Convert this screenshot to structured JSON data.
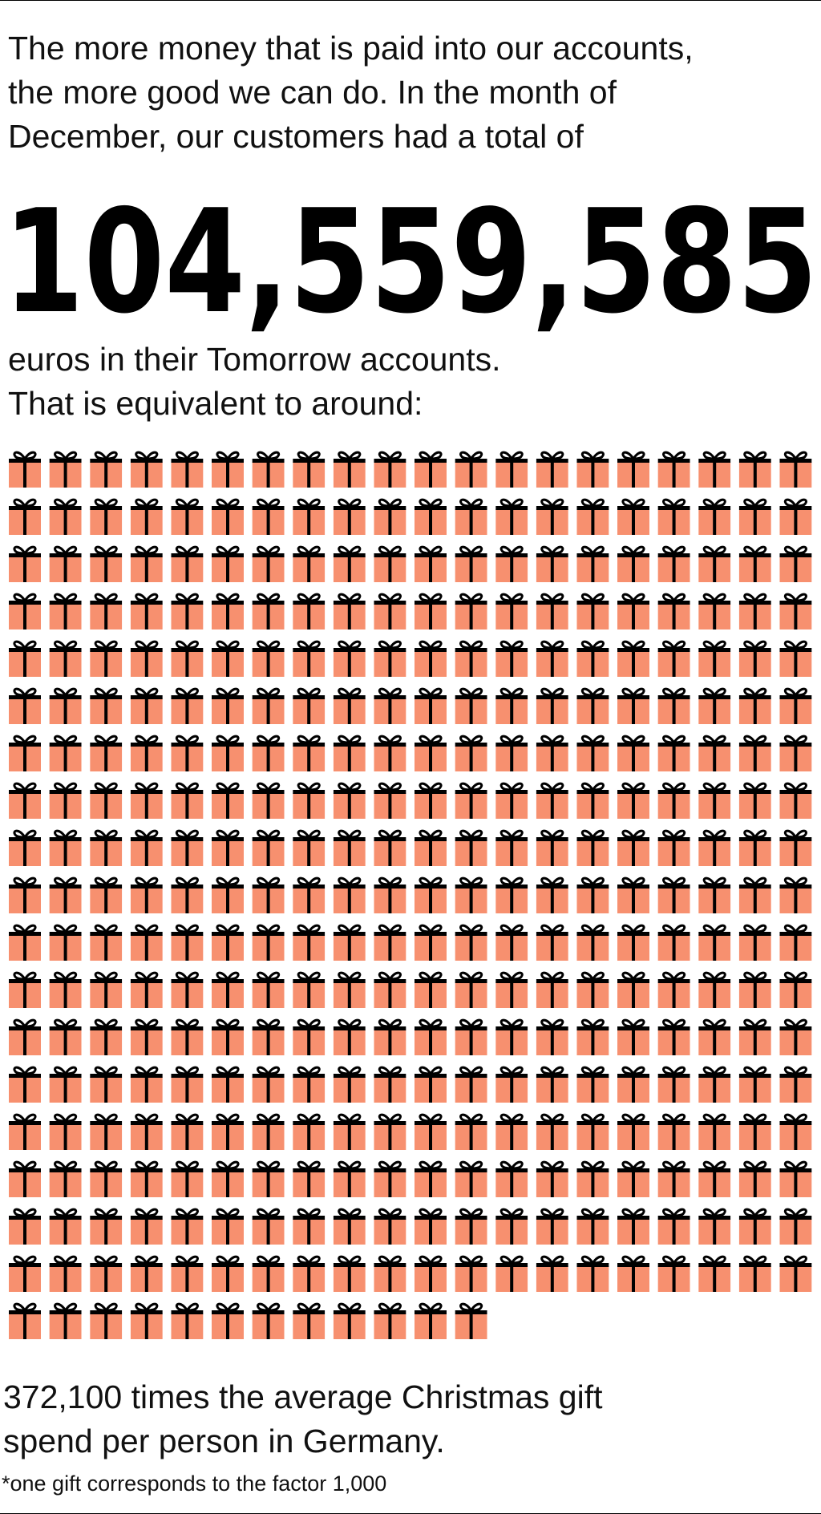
{
  "intro_lines": [
    "The more money that is paid into our accounts,",
    "the more good we can do. In the month of",
    "December, our customers had a total of"
  ],
  "total": "104,559,585",
  "after_lines": [
    "euros in their Tomorrow accounts.",
    "That is equivalent to around:"
  ],
  "pictograph": {
    "count": 372,
    "per_row": 20,
    "color": "#f7906f"
  },
  "conclusion_lines": [
    "372,100 times the average Christmas gift",
    "spend per person in Germany."
  ],
  "footnote": "*one gift corresponds to the factor 1,000"
}
